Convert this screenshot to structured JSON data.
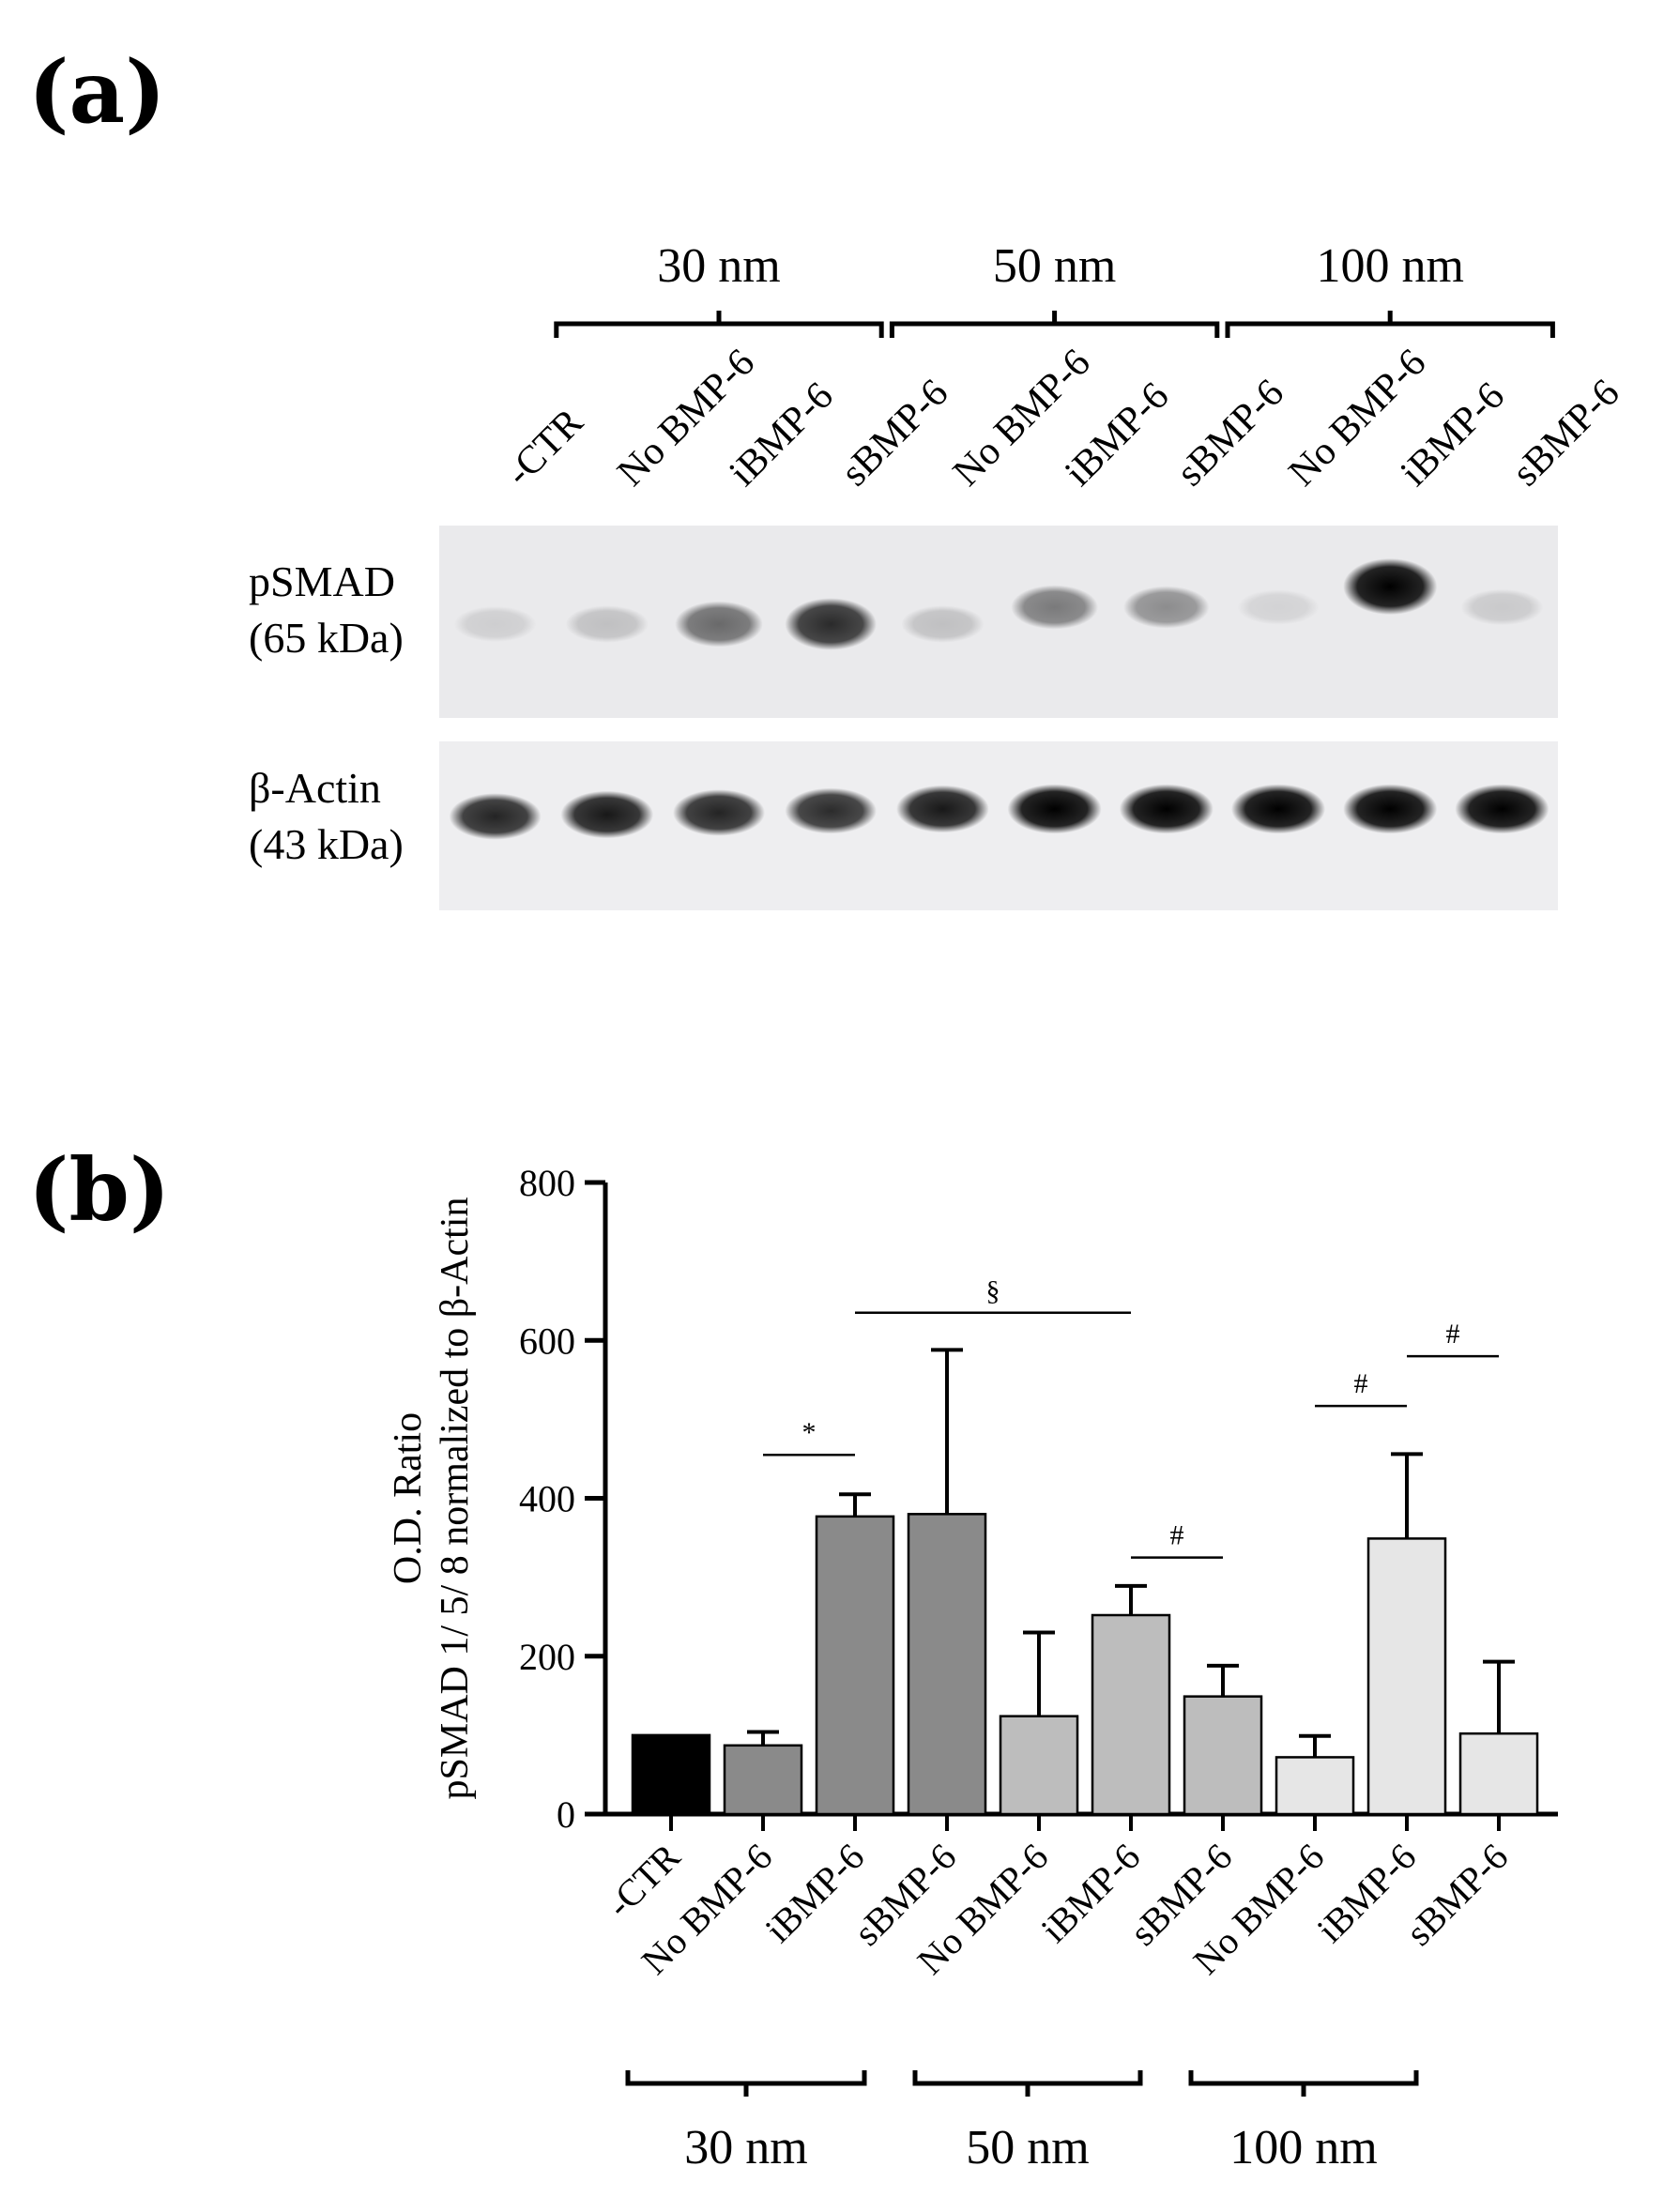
{
  "figure": {
    "panel_a_label": "(a)",
    "panel_b_label": "(b)"
  },
  "blot": {
    "groups": [
      {
        "label": "30 nm"
      },
      {
        "label": "50 nm"
      },
      {
        "label": "100 nm"
      }
    ],
    "lanes": [
      "-CTR",
      "No BMP-6",
      "iBMP-6",
      "sBMP-6",
      "No BMP-6",
      "iBMP-6",
      "sBMP-6",
      "No BMP-6",
      "iBMP-6",
      "sBMP-6"
    ],
    "rows": [
      {
        "name": "pSMAD",
        "size": "(65 kDa)",
        "intensity": [
          0.12,
          0.18,
          0.55,
          0.82,
          0.18,
          0.48,
          0.4,
          0.1,
          1.0,
          0.14
        ]
      },
      {
        "name": "β-Actin",
        "size": "(43 kDa)",
        "intensity": [
          0.85,
          0.9,
          0.85,
          0.82,
          0.9,
          1.0,
          1.0,
          1.0,
          1.0,
          1.0
        ]
      }
    ]
  },
  "chart_data": {
    "type": "bar",
    "ylabel": [
      "O.D. Ratio",
      "pSMAD 1/ 5/ 8 normalized to β-Actin"
    ],
    "ylim": [
      0,
      800
    ],
    "yticks": [
      0,
      200,
      400,
      600,
      800
    ],
    "categories": [
      "-CTR",
      "No BMP-6",
      "iBMP-6",
      "sBMP-6",
      "No BMP-6",
      "iBMP-6",
      "sBMP-6",
      "No BMP-6",
      "iBMP-6",
      "sBMP-6"
    ],
    "values": [
      100,
      87,
      377,
      380,
      124,
      252,
      149,
      72,
      349,
      102
    ],
    "errors": [
      0,
      17,
      28,
      208,
      106,
      37,
      39,
      27,
      107,
      91
    ],
    "colors": [
      "#000000",
      "#8a8a8a",
      "#8a8a8a",
      "#8a8a8a",
      "#bdbdbd",
      "#bdbdbd",
      "#bdbdbd",
      "#e6e6e6",
      "#e6e6e6",
      "#e6e6e6"
    ],
    "groups": [
      {
        "label": "30 nm",
        "from": 0,
        "to": 2
      },
      {
        "label": "50 nm",
        "from": 3,
        "to": 5
      },
      {
        "label": "100 nm",
        "from": 6,
        "to": 8
      }
    ],
    "significance": [
      {
        "symbol": "*",
        "from": 1,
        "to": 2,
        "y": 455
      },
      {
        "symbol": "§",
        "from": 2,
        "to": 5,
        "y": 635
      },
      {
        "symbol": "#",
        "from": 5,
        "to": 6,
        "y": 325
      },
      {
        "symbol": "#",
        "from": 7,
        "to": 8,
        "y": 517
      },
      {
        "symbol": "#",
        "from": 8,
        "to": 9,
        "y": 580
      }
    ]
  }
}
